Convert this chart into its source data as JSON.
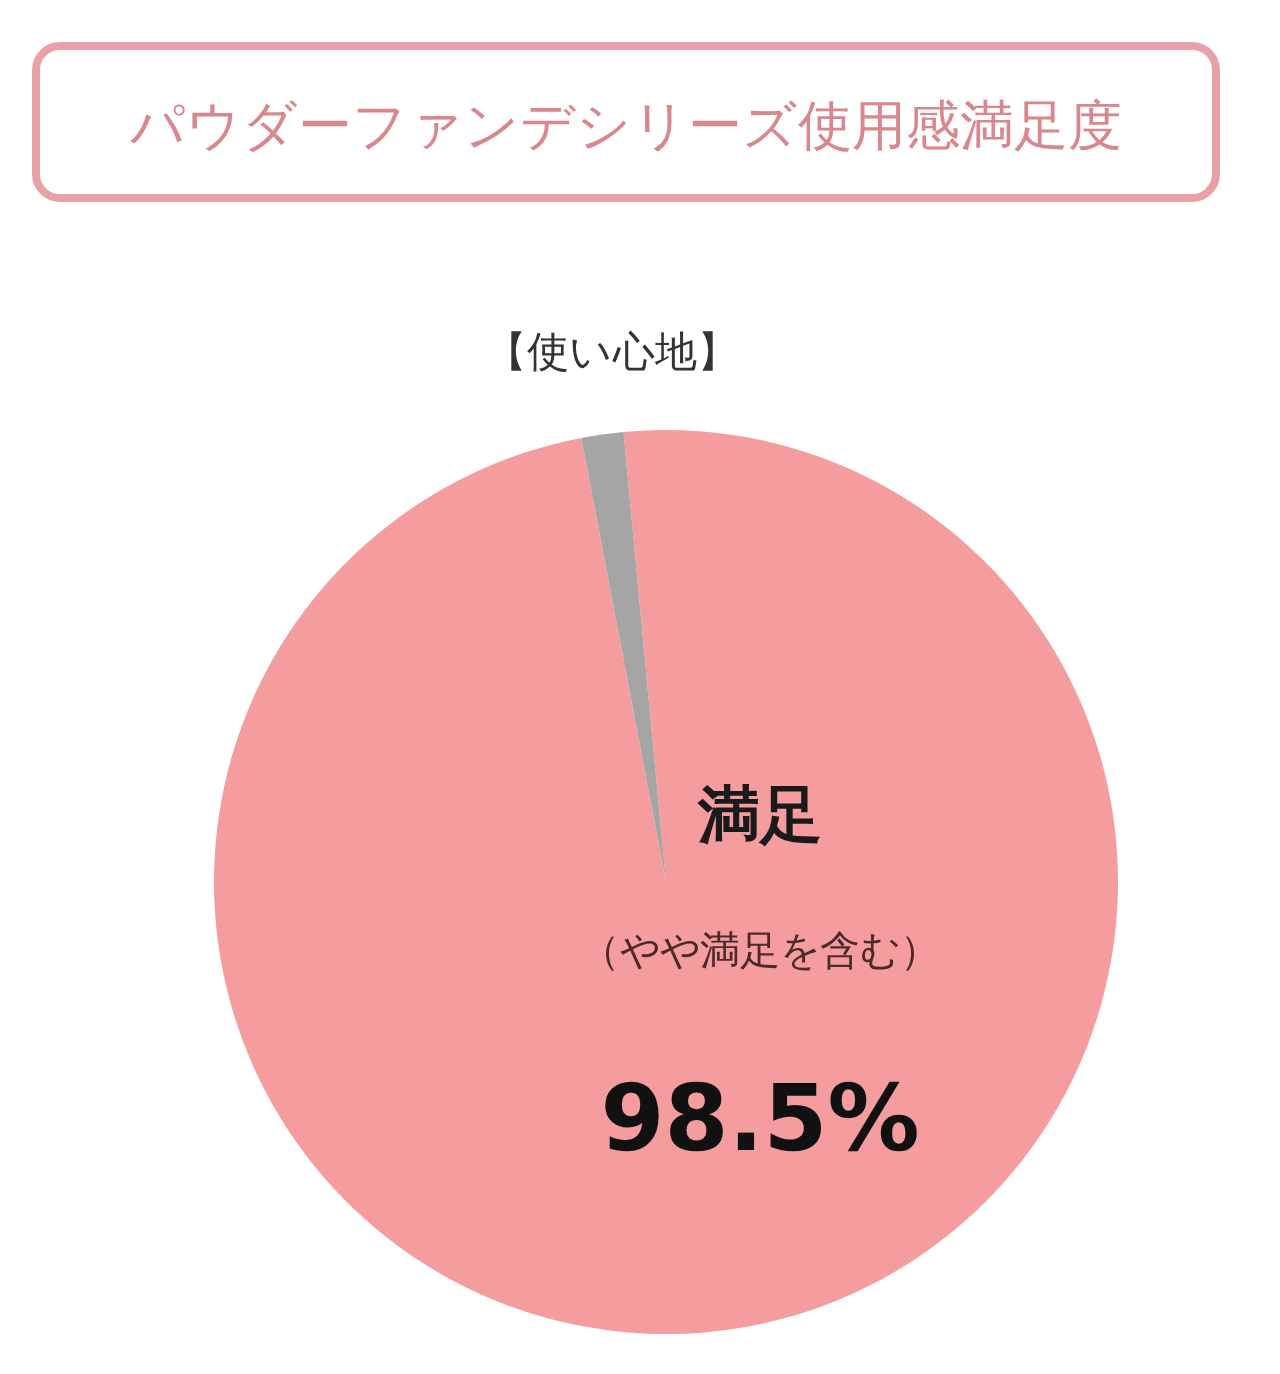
{
  "chart_data": {
    "type": "pie",
    "title": "パウダーファンデシリーズ使用感満足度",
    "subtitle": "【使い心地】",
    "categories": [
      "満足",
      null
    ],
    "values": [
      98.5,
      1.5
    ],
    "colors": [
      "#f49c9e",
      "#a5a5a5"
    ],
    "value_labels": [
      "98.5%",
      null
    ],
    "annotations": [
      "（やや満足を含む）"
    ]
  }
}
